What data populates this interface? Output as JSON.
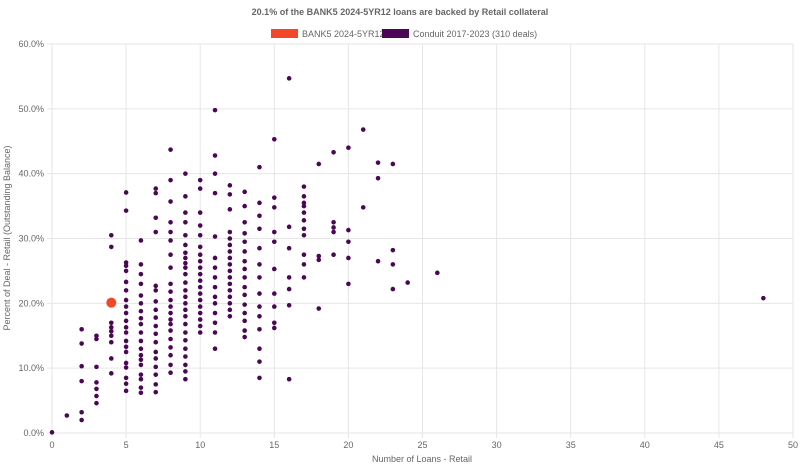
{
  "chart_data": {
    "type": "scatter",
    "title": "20.1% of the BANK5 2024-5YR12 loans are backed by Retail collateral",
    "xlabel": "Number of Loans - Retail",
    "ylabel": "Percent of Deal - Retail (Outstanding Balance)",
    "xlim": [
      0,
      50
    ],
    "ylim": [
      0,
      60
    ],
    "x_ticks": [
      "0",
      "5",
      "10",
      "15",
      "20",
      "25",
      "30",
      "35",
      "40",
      "45",
      "50"
    ],
    "y_ticks": [
      "0.0%",
      "10.0%",
      "20.0%",
      "30.0%",
      "40.0%",
      "50.0%",
      "60.0%"
    ],
    "grid": true,
    "legend_position": "top",
    "series": [
      {
        "name": "BANK5 2024-5YR12",
        "color": "#f4472a",
        "points": [
          [
            4,
            20.1
          ]
        ]
      },
      {
        "name": "Conduit 2017-2023 (310 deals)",
        "color": "#4b0755",
        "points": [
          [
            0,
            0.1
          ],
          [
            1,
            2.7
          ],
          [
            2,
            2.0
          ],
          [
            2,
            3.2
          ],
          [
            2,
            8.0
          ],
          [
            2,
            10.3
          ],
          [
            2,
            13.8
          ],
          [
            2,
            16.0
          ],
          [
            3,
            4.6
          ],
          [
            3,
            5.7
          ],
          [
            3,
            6.8
          ],
          [
            3,
            7.8
          ],
          [
            3,
            10.2
          ],
          [
            3,
            14.5
          ],
          [
            3,
            15.0
          ],
          [
            4,
            9.2
          ],
          [
            4,
            11.5
          ],
          [
            4,
            14.0
          ],
          [
            4,
            15.0
          ],
          [
            4,
            15.7
          ],
          [
            4,
            16.3
          ],
          [
            4,
            17.0
          ],
          [
            4,
            28.7
          ],
          [
            4,
            30.5
          ],
          [
            5,
            6.5
          ],
          [
            5,
            7.6
          ],
          [
            5,
            8.5
          ],
          [
            5,
            10.1
          ],
          [
            5,
            10.8
          ],
          [
            5,
            12.5
          ],
          [
            5,
            13.3
          ],
          [
            5,
            14.2
          ],
          [
            5,
            15.5
          ],
          [
            5,
            16.3
          ],
          [
            5,
            17.3
          ],
          [
            5,
            18.5
          ],
          [
            5,
            19.5
          ],
          [
            5,
            20.5
          ],
          [
            5,
            22.0
          ],
          [
            5,
            23.3
          ],
          [
            5,
            25.0
          ],
          [
            5,
            25.8
          ],
          [
            5,
            26.3
          ],
          [
            5,
            34.3
          ],
          [
            5,
            37.1
          ],
          [
            6,
            6.2
          ],
          [
            6,
            7.0
          ],
          [
            6,
            8.3
          ],
          [
            6,
            9.0
          ],
          [
            6,
            10.5
          ],
          [
            6,
            11.3
          ],
          [
            6,
            12.0
          ],
          [
            6,
            13.0
          ],
          [
            6,
            14.2
          ],
          [
            6,
            15.5
          ],
          [
            6,
            16.8
          ],
          [
            6,
            17.7
          ],
          [
            6,
            18.8
          ],
          [
            6,
            20.0
          ],
          [
            6,
            21.2
          ],
          [
            6,
            23.0
          ],
          [
            6,
            24.5
          ],
          [
            6,
            26.0
          ],
          [
            6,
            29.7
          ],
          [
            7,
            6.3
          ],
          [
            7,
            7.5
          ],
          [
            7,
            9.0
          ],
          [
            7,
            10.2
          ],
          [
            7,
            11.5
          ],
          [
            7,
            12.5
          ],
          [
            7,
            14.0
          ],
          [
            7,
            15.3
          ],
          [
            7,
            16.5
          ],
          [
            7,
            17.8
          ],
          [
            7,
            19.0
          ],
          [
            7,
            20.3
          ],
          [
            7,
            22.0
          ],
          [
            7,
            22.7
          ],
          [
            7,
            31.0
          ],
          [
            7,
            33.2
          ],
          [
            7,
            37.0
          ],
          [
            7,
            37.7
          ],
          [
            8,
            9.3
          ],
          [
            8,
            10.5
          ],
          [
            8,
            12.0
          ],
          [
            8,
            13.2
          ],
          [
            8,
            14.5
          ],
          [
            8,
            15.8
          ],
          [
            8,
            16.8
          ],
          [
            8,
            17.5
          ],
          [
            8,
            18.5
          ],
          [
            8,
            19.5
          ],
          [
            8,
            20.5
          ],
          [
            8,
            21.8
          ],
          [
            8,
            23.0
          ],
          [
            8,
            25.5
          ],
          [
            8,
            27.5
          ],
          [
            8,
            29.7
          ],
          [
            8,
            31.0
          ],
          [
            8,
            32.5
          ],
          [
            8,
            35.7
          ],
          [
            8,
            39.0
          ],
          [
            8,
            43.7
          ],
          [
            9,
            8.3
          ],
          [
            9,
            9.5
          ],
          [
            9,
            10.5
          ],
          [
            9,
            11.8
          ],
          [
            9,
            13.0
          ],
          [
            9,
            14.3
          ],
          [
            9,
            15.5
          ],
          [
            9,
            16.8
          ],
          [
            9,
            18.0
          ],
          [
            9,
            19.0
          ],
          [
            9,
            20.0
          ],
          [
            9,
            21.0
          ],
          [
            9,
            22.0
          ],
          [
            9,
            23.2
          ],
          [
            9,
            24.5
          ],
          [
            9,
            25.5
          ],
          [
            9,
            26.2
          ],
          [
            9,
            27.0
          ],
          [
            9,
            27.8
          ],
          [
            9,
            29.0
          ],
          [
            9,
            30.5
          ],
          [
            9,
            32.5
          ],
          [
            9,
            34.0
          ],
          [
            9,
            36.5
          ],
          [
            9,
            40.0
          ],
          [
            10,
            15.5
          ],
          [
            10,
            16.5
          ],
          [
            10,
            17.5
          ],
          [
            10,
            18.5
          ],
          [
            10,
            19.5
          ],
          [
            10,
            20.5
          ],
          [
            10,
            21.5
          ],
          [
            10,
            22.5
          ],
          [
            10,
            23.5
          ],
          [
            10,
            24.5
          ],
          [
            10,
            25.5
          ],
          [
            10,
            26.5
          ],
          [
            10,
            27.5
          ],
          [
            10,
            28.7
          ],
          [
            10,
            30.5
          ],
          [
            10,
            32.0
          ],
          [
            10,
            34.0
          ],
          [
            10,
            37.7
          ],
          [
            10,
            39.0
          ],
          [
            11,
            13.0
          ],
          [
            11,
            15.5
          ],
          [
            11,
            17.0
          ],
          [
            11,
            18.5
          ],
          [
            11,
            20.0
          ],
          [
            11,
            21.0
          ],
          [
            11,
            22.5
          ],
          [
            11,
            24.0
          ],
          [
            11,
            25.5
          ],
          [
            11,
            27.0
          ],
          [
            11,
            30.3
          ],
          [
            11,
            37.0
          ],
          [
            11,
            40.0
          ],
          [
            11,
            42.8
          ],
          [
            11,
            49.8
          ],
          [
            12,
            18.0
          ],
          [
            12,
            19.0
          ],
          [
            12,
            20.0
          ],
          [
            12,
            21.0
          ],
          [
            12,
            22.0
          ],
          [
            12,
            23.0
          ],
          [
            12,
            24.0
          ],
          [
            12,
            25.0
          ],
          [
            12,
            26.0
          ],
          [
            12,
            27.0
          ],
          [
            12,
            28.0
          ],
          [
            12,
            29.0
          ],
          [
            12,
            30.0
          ],
          [
            12,
            31.0
          ],
          [
            12,
            34.5
          ],
          [
            12,
            36.8
          ],
          [
            12,
            38.2
          ],
          [
            13,
            14.8
          ],
          [
            13,
            15.8
          ],
          [
            13,
            17.3
          ],
          [
            13,
            18.5
          ],
          [
            13,
            19.8
          ],
          [
            13,
            21.3
          ],
          [
            13,
            22.5
          ],
          [
            13,
            24.0
          ],
          [
            13,
            25.3
          ],
          [
            13,
            26.5
          ],
          [
            13,
            28.0
          ],
          [
            13,
            29.5
          ],
          [
            13,
            30.8
          ],
          [
            13,
            32.5
          ],
          [
            13,
            35.0
          ],
          [
            13,
            37.2
          ],
          [
            14,
            8.5
          ],
          [
            14,
            11.0
          ],
          [
            14,
            13.0
          ],
          [
            14,
            16.0
          ],
          [
            14,
            18.0
          ],
          [
            14,
            19.5
          ],
          [
            14,
            21.5
          ],
          [
            14,
            24.0
          ],
          [
            14,
            26.0
          ],
          [
            14,
            28.5
          ],
          [
            14,
            31.5
          ],
          [
            14,
            33.5
          ],
          [
            14,
            35.5
          ],
          [
            14,
            41.0
          ],
          [
            15,
            16.2
          ],
          [
            15,
            17.0
          ],
          [
            15,
            19.5
          ],
          [
            15,
            21.5
          ],
          [
            15,
            25.3
          ],
          [
            15,
            29.5
          ],
          [
            15,
            31.0
          ],
          [
            15,
            34.8
          ],
          [
            15,
            36.3
          ],
          [
            15,
            45.3
          ],
          [
            16,
            8.3
          ],
          [
            16,
            19.7
          ],
          [
            16,
            22.2
          ],
          [
            16,
            24.0
          ],
          [
            16,
            28.5
          ],
          [
            16,
            31.8
          ],
          [
            16,
            54.7
          ],
          [
            17,
            24.0
          ],
          [
            17,
            26.0
          ],
          [
            17,
            27.5
          ],
          [
            17,
            30.5
          ],
          [
            17,
            31.5
          ],
          [
            17,
            32.8
          ],
          [
            17,
            34.0
          ],
          [
            17,
            35.0
          ],
          [
            17,
            35.5
          ],
          [
            17,
            36.5
          ],
          [
            17,
            38.0
          ],
          [
            18,
            19.2
          ],
          [
            18,
            26.7
          ],
          [
            18,
            27.3
          ],
          [
            18,
            41.5
          ],
          [
            19,
            27.5
          ],
          [
            19,
            31.0
          ],
          [
            19,
            31.7
          ],
          [
            19,
            32.5
          ],
          [
            19,
            43.3
          ],
          [
            20,
            23.0
          ],
          [
            20,
            27.0
          ],
          [
            20,
            29.5
          ],
          [
            20,
            31.3
          ],
          [
            20,
            44.0
          ],
          [
            21,
            34.8
          ],
          [
            21,
            46.8
          ],
          [
            22,
            26.5
          ],
          [
            22,
            39.3
          ],
          [
            22,
            41.7
          ],
          [
            23,
            22.2
          ],
          [
            23,
            26.0
          ],
          [
            23,
            28.2
          ],
          [
            23,
            41.5
          ],
          [
            24,
            23.2
          ],
          [
            26,
            24.7
          ],
          [
            48,
            20.8
          ]
        ]
      }
    ]
  }
}
